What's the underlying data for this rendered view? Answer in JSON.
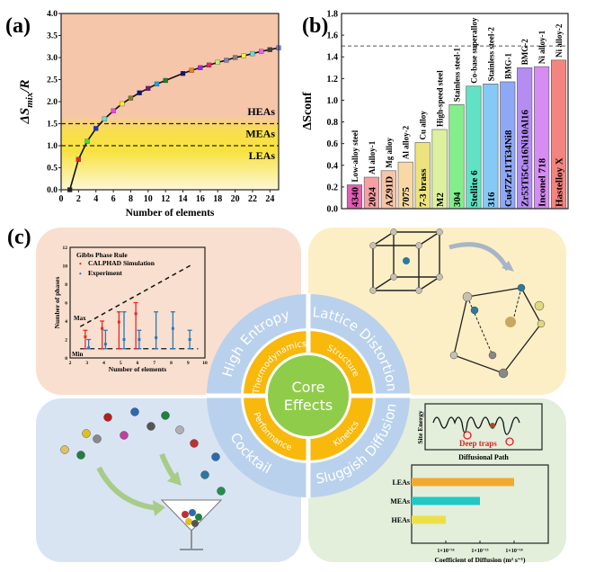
{
  "panel_labels": {
    "a": "(a)",
    "b": "(b)",
    "c": "(c)"
  },
  "colors": {
    "peach": "#f6c6aa",
    "yellow": "#f8e23e",
    "pale": "#fdf7d8",
    "quad_tl": "#f9dfcf",
    "quad_tr": "#fcefc6",
    "quad_bl": "#d9e4f3",
    "quad_br": "#e3eedb",
    "outer_ring": "#b9d1ec",
    "mid_ring": "#f8b80c",
    "core": "#8fcc4a"
  },
  "chart_data": [
    {
      "id": "a",
      "type": "line",
      "xlabel": "Number of elements",
      "ylabel": "ΔS",
      "ylabel_sub": "mix",
      "ylabel_tail": "/R",
      "xlim": [
        0,
        25
      ],
      "ylim": [
        0,
        4.0
      ],
      "xticks": [
        0,
        2,
        4,
        6,
        8,
        10,
        12,
        14,
        16,
        18,
        20,
        22,
        24
      ],
      "yticks": [
        "0.0",
        "0.5",
        "1.0",
        "1.5",
        "2.0",
        "2.5",
        "3.0",
        "3.5",
        "4.0"
      ],
      "x": [
        1,
        2,
        3,
        4,
        5,
        6,
        7,
        8,
        9,
        10,
        11,
        12,
        14,
        15,
        16,
        17,
        18,
        19,
        20,
        21,
        22,
        23,
        24,
        25
      ],
      "y": [
        0,
        0.69,
        1.1,
        1.39,
        1.61,
        1.79,
        1.95,
        2.08,
        2.2,
        2.3,
        2.4,
        2.48,
        2.64,
        2.71,
        2.77,
        2.83,
        2.89,
        2.94,
        3.0,
        3.04,
        3.09,
        3.14,
        3.18,
        3.22
      ],
      "marker_colors": [
        "#222",
        "#f02020",
        "#40e040",
        "#1030e0",
        "#60e0e0",
        "#f040f0",
        "#f8f020",
        "#808020",
        "#101080",
        "#801080",
        "#20a0e0",
        "#208020",
        "#101080",
        "#f08020",
        "#a020f0",
        "#f02060",
        "#c0f080",
        "#8080c0",
        "#808080",
        "#f0f040",
        "#60e0e0",
        "#f060f0",
        "#404040",
        "#8080f0"
      ],
      "thresholds": [
        {
          "value": 1.5,
          "label": "HEAs"
        },
        {
          "value": 1.0,
          "label": "LEAs"
        }
      ],
      "region_labels": [
        "HEAs",
        "MEAs",
        "LEAs"
      ]
    },
    {
      "id": "b",
      "type": "bar",
      "ylabel": "ΔSconf",
      "ylim": [
        0,
        1.8
      ],
      "yticks": [
        "0.0",
        "0.2",
        "0.4",
        "0.6",
        "0.8",
        "1.0",
        "1.2",
        "1.4",
        "1.6",
        "1.8"
      ],
      "threshold": 1.5,
      "categories": [
        "4340",
        "2024",
        "AZ91D",
        "7075",
        "7-3 brass",
        "M2",
        "304",
        "Stellite 6",
        "316",
        "Cu47Zr11Ti34Ni8",
        "Zr53Ti5Cu16Ni10Al16",
        "Inconel 718",
        "Hastelloy X"
      ],
      "groups": [
        "Low-alloy steel",
        "Al alloy-1",
        "Mg alloy",
        "Al alloy-2",
        "Cu alloy",
        "High-speed steel",
        "Stainless steel-1",
        "Co-base superalloy",
        "Stainless steel-2",
        "BMG-1",
        "BMG-2",
        "Ni alloy-1",
        "Ni alloy-2"
      ],
      "values": [
        0.22,
        0.29,
        0.35,
        0.43,
        0.61,
        0.73,
        0.96,
        1.13,
        1.15,
        1.17,
        1.3,
        1.31,
        1.37
      ],
      "bar_colors": [
        "#e45fb4",
        "#f4a0a4",
        "#f7c4a8",
        "#f8d8a4",
        "#ece27e",
        "#dcf0a0",
        "#84ee8c",
        "#62e2c4",
        "#86c8f6",
        "#8ea8f6",
        "#b48cf2",
        "#d68cf2",
        "#f48480"
      ]
    },
    {
      "id": "c-gibbs",
      "type": "scatter",
      "title": "Gibbs Phase Rule",
      "xlabel": "Number of elements",
      "ylabel": "Number of phases",
      "xlim": [
        2,
        10
      ],
      "ylim": [
        0,
        12
      ],
      "xticks": [
        "2",
        "3",
        "4",
        "5",
        "6",
        "7",
        "8",
        "9",
        "10"
      ],
      "yticks": [
        "0",
        "2",
        "4",
        "6",
        "8",
        "10",
        "12"
      ],
      "annotations": [
        "Max",
        "Min"
      ],
      "series": [
        {
          "name": "CALPHAD Simulation",
          "color": "#e82828",
          "x": [
            2.9,
            3.9,
            4.9,
            5.9
          ],
          "mean": [
            2.3,
            3.2,
            3.9,
            4.8
          ],
          "low": [
            1,
            1,
            1,
            1
          ],
          "high": [
            3,
            4,
            5,
            6
          ]
        },
        {
          "name": "Experiment",
          "color": "#2a78b8",
          "x": [
            3.1,
            4.1,
            5.2,
            6.1,
            7.1,
            8.1,
            9.1
          ],
          "mean": [
            1.1,
            1.5,
            2.0,
            2.0,
            2.2,
            3.2,
            2.0
          ],
          "low": [
            1,
            1,
            1,
            1,
            1,
            1,
            1
          ],
          "high": [
            2,
            3,
            5,
            3,
            5,
            5,
            3
          ]
        }
      ],
      "max_line": {
        "x": [
          2.6,
          9.3
        ],
        "y": [
          3.4,
          10.2
        ]
      },
      "min_line": {
        "x": [
          2.6,
          9.6
        ],
        "y": [
          1,
          1
        ]
      }
    },
    {
      "id": "c-diffusion",
      "type": "bar",
      "orientation": "horizontal",
      "xlabel": "Coefficient of Diffusion (m² s⁻¹)",
      "xticks": [
        "1×10⁻¹⁶",
        "1×10⁻¹⁵",
        "1×10⁻¹⁴"
      ],
      "categories": [
        "LEAs",
        "MEAs",
        "HEAs"
      ],
      "log10_values": [
        -14,
        -15,
        -16
      ],
      "bar_colors": [
        "#f0aa30",
        "#20c8c8",
        "#ece048"
      ]
    }
  ],
  "diffusion_inset": {
    "ylabel": "Site Energy",
    "xlabel": "Diffusional Path",
    "annotation": "Deep traps"
  },
  "core": {
    "center": [
      "Core",
      "Effects"
    ],
    "outer": [
      "High Entropy",
      "Lattice Distortion",
      "Cocktail",
      "Sluggish Diffusion"
    ],
    "inner": [
      "Thermodynamics",
      "Structure",
      "Performance",
      "Kinetics"
    ]
  }
}
